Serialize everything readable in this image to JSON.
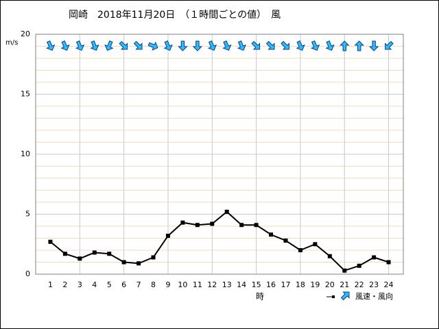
{
  "chart_data": {
    "type": "line",
    "title": "岡崎　2018年11月20日　（１時間ごとの値）　風",
    "y_label": "m/s",
    "x_label": "時",
    "legend_label": "風速・風向",
    "x": [
      1,
      2,
      3,
      4,
      5,
      6,
      7,
      8,
      9,
      10,
      11,
      12,
      13,
      14,
      15,
      16,
      17,
      18,
      19,
      20,
      21,
      22,
      23,
      24
    ],
    "series": [
      {
        "name": "風速",
        "color": "#000000",
        "values": [
          2.7,
          1.7,
          1.3,
          1.8,
          1.7,
          1.0,
          0.9,
          1.4,
          3.2,
          4.3,
          4.1,
          4.2,
          5.2,
          4.1,
          4.1,
          3.3,
          2.8,
          2.0,
          2.5,
          1.5,
          0.3,
          0.7,
          1.4,
          1.0
        ]
      }
    ],
    "directions": [
      157.5,
      157.5,
      157.5,
      157.5,
      202.5,
      135,
      135,
      112.5,
      157.5,
      180,
      180,
      157.5,
      157.5,
      157.5,
      135,
      135,
      135,
      157.5,
      157.5,
      157.5,
      0,
      0,
      180,
      225
    ],
    "arrow_color": "#33bbff",
    "xlim": [
      0,
      25
    ],
    "xticks": [
      1,
      2,
      3,
      4,
      5,
      6,
      7,
      8,
      9,
      10,
      11,
      12,
      13,
      14,
      15,
      16,
      17,
      18,
      19,
      20,
      21,
      22,
      23,
      24
    ],
    "ylim": [
      0,
      20
    ],
    "yticks": [
      0,
      5,
      10,
      15,
      20
    ],
    "grid": true
  }
}
